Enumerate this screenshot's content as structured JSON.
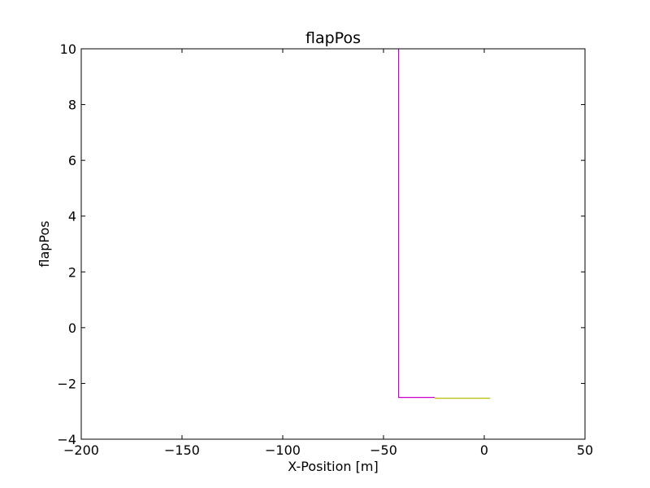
{
  "chart_data": {
    "type": "line",
    "title": "flapPos",
    "xlabel": "X-Position [m]",
    "ylabel": "flapPos",
    "xlim": [
      -200,
      50
    ],
    "ylim": [
      -4,
      10
    ],
    "xticks": [
      -200,
      -150,
      -100,
      -50,
      0,
      50
    ],
    "yticks": [
      -4,
      -2,
      0,
      2,
      4,
      6,
      8,
      10
    ],
    "xtick_labels": [
      "−200",
      "−150",
      "−100",
      "−50",
      "0",
      "50"
    ],
    "ytick_labels": [
      "−4",
      "−2",
      "0",
      "2",
      "4",
      "6",
      "8",
      "10"
    ],
    "grid": false,
    "series": [
      {
        "color": "#cc00cc",
        "x": [
          -42.5,
          -42.5,
          -24.5
        ],
        "y": [
          10,
          -2.5,
          -2.5
        ]
      },
      {
        "color": "#bbbb00",
        "x": [
          -24.5,
          3
        ],
        "y": [
          -2.53,
          -2.53
        ]
      }
    ]
  }
}
